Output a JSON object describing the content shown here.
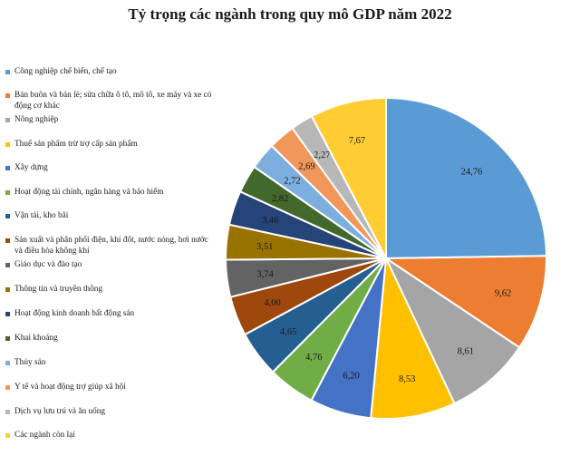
{
  "chart_data": {
    "type": "pie",
    "title": "Tỷ trọng các ngành trong quy mô GDP năm 2022",
    "legend_position": "left",
    "slices": [
      {
        "label": "Công nghiệp chế biến, chế tạo",
        "value": 24.76,
        "display": "24,76",
        "color": "#5b9bd5"
      },
      {
        "label": "Bán buôn và bán lẻ; sửa chữa ô tô, mô tô, xe máy và xe có động cơ khác",
        "value": 9.62,
        "display": "9,62",
        "color": "#ed7d31"
      },
      {
        "label": "Nông nghiệp",
        "value": 8.61,
        "display": "8,61",
        "color": "#a5a5a5"
      },
      {
        "label": "Thuế sản phẩm trừ trợ cấp sản phẩm",
        "value": 8.53,
        "display": "8,53",
        "color": "#ffc000"
      },
      {
        "label": "Xây dựng",
        "value": 6.2,
        "display": "6,20",
        "color": "#4472c4"
      },
      {
        "label": "Hoạt động tài chính, ngân hàng và bảo hiểm",
        "value": 4.76,
        "display": "4,76",
        "color": "#70ad47"
      },
      {
        "label": "Vận tải, kho bãi",
        "value": 4.65,
        "display": "4,65",
        "color": "#255e91"
      },
      {
        "label": "Sản xuất và phân phối điện, khí đốt, nước nóng, hơi nước và điều hòa không khí",
        "value": 4.0,
        "display": "4,00",
        "color": "#9e480e"
      },
      {
        "label": "Giáo dục và đào tạo",
        "value": 3.74,
        "display": "3,74",
        "color": "#636363"
      },
      {
        "label": "Thông tin và truyền thông",
        "value": 3.51,
        "display": "3,51",
        "color": "#997300"
      },
      {
        "label": "Hoạt động kinh doanh bất động sản",
        "value": 3.46,
        "display": "3,46",
        "color": "#264478"
      },
      {
        "label": "Khai khoáng",
        "value": 2.82,
        "display": "2,82",
        "color": "#43682b"
      },
      {
        "label": "Thủy sản",
        "value": 2.72,
        "display": "2,72",
        "color": "#7cafdd"
      },
      {
        "label": "Y tế và hoạt động trợ giúp xã hội",
        "value": 2.69,
        "display": "2,69",
        "color": "#f1975a"
      },
      {
        "label": "Dịch vụ lưu trú và ăn uống",
        "value": 2.27,
        "display": "2,27",
        "color": "#b7b7b7"
      },
      {
        "label": "Các ngành còn lại",
        "value": 7.67,
        "display": "7,67",
        "color": "#ffcd33"
      }
    ]
  }
}
